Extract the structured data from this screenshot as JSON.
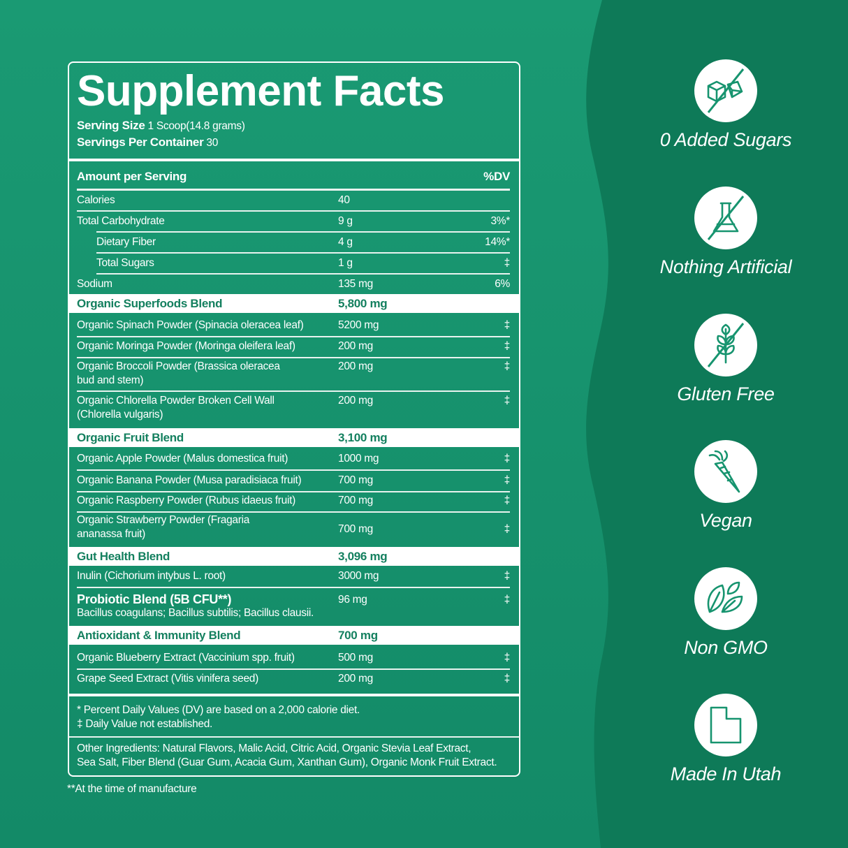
{
  "colors": {
    "panel": "#17946f",
    "dark": "#0e7a58",
    "white": "#ffffff",
    "blend_text": "#14805f"
  },
  "facts": {
    "title": "Supplement Facts",
    "serving_size_label": "Serving Size",
    "serving_size_value": "1 Scoop(14.8 grams)",
    "servings_label": "Servings Per Container",
    "servings_value": "30",
    "amount_header": "Amount per Serving",
    "dv_header": "%DV",
    "nutrients": [
      {
        "name": "Calories",
        "amount": "40",
        "dv": ""
      },
      {
        "name": "Total Carbohydrate",
        "amount": "9 g",
        "dv": "3%*"
      },
      {
        "name": "Dietary Fiber",
        "amount": "4 g",
        "dv": "14%*"
      },
      {
        "name": "Total Sugars",
        "amount": "1 g",
        "dv": "‡"
      },
      {
        "name": "Sodium",
        "amount": "135 mg",
        "dv": "6%"
      }
    ],
    "blends": [
      {
        "name": "Organic Superfoods Blend",
        "amount": "5,800 mg",
        "items": [
          {
            "name": "Organic Spinach Powder (Spinacia oleracea leaf)",
            "amount": "5200 mg",
            "dv": "‡"
          },
          {
            "name": "Organic Moringa Powder (Moringa oleifera leaf)",
            "amount": "200 mg",
            "dv": "‡"
          },
          {
            "name": "Organic Broccoli Powder (Brassica oleracea",
            "name2": "bud and stem)",
            "amount": "200 mg",
            "dv": "‡"
          },
          {
            "name": "Organic Chlorella Powder Broken Cell Wall",
            "name2": "(Chlorella vulgaris)",
            "amount": "200 mg",
            "dv": "‡"
          }
        ]
      },
      {
        "name": "Organic Fruit Blend",
        "amount": "3,100 mg",
        "items": [
          {
            "name": "Organic Apple Powder (Malus domestica fruit)",
            "amount": "1000 mg",
            "dv": "‡"
          },
          {
            "name": "Organic Banana Powder (Musa paradisiaca fruit)",
            "amount": "700 mg",
            "dv": "‡"
          },
          {
            "name": "Organic Raspberry Powder (Rubus idaeus fruit)",
            "amount": "700 mg",
            "dv": "‡"
          },
          {
            "name": "Organic Strawberry Powder (Fragaria",
            "name2": "ananassa fruit)",
            "amount": "700 mg",
            "dv": "‡"
          }
        ]
      },
      {
        "name": "Gut Health Blend",
        "amount": "3,096 mg",
        "items": [
          {
            "name": "Inulin (Cichorium intybus L. root)",
            "amount": "3000 mg",
            "dv": "‡"
          },
          {
            "name": "Probiotic Blend (5B CFU**)",
            "name2": "Bacillus coagulans; Bacillus subtilis; Bacillus clausii.",
            "amount": "96 mg",
            "dv": "‡"
          }
        ]
      },
      {
        "name": "Antioxidant & Immunity Blend",
        "amount": "700 mg",
        "items": [
          {
            "name": "Organic Blueberry Extract (Vaccinium spp. fruit)",
            "amount": "500 mg",
            "dv": "‡"
          },
          {
            "name": "Grape Seed Extract (Vitis vinifera seed)",
            "amount": "200 mg",
            "dv": "‡"
          }
        ]
      }
    ],
    "footnote1": "* Percent Daily Values (DV) are based on a 2,000 calorie diet.",
    "footnote2": "‡ Daily Value not established.",
    "other1": "Other Ingredients: Natural Flavors, Malic Acid, Citric Acid, Organic Stevia Leaf Extract,",
    "other2": "Sea Salt, Fiber Blend (Guar Gum, Acacia Gum, Xanthan Gum), Organic Monk Fruit Extract.",
    "manufacture_note": "**At the time of manufacture"
  },
  "badges": [
    {
      "label": "0 Added Sugars",
      "icon": "no-sugar-cubes-icon"
    },
    {
      "label": "Nothing Artificial",
      "icon": "no-flask-icon"
    },
    {
      "label": "Gluten Free",
      "icon": "no-wheat-icon"
    },
    {
      "label": "Vegan",
      "icon": "carrot-icon"
    },
    {
      "label": "Non GMO",
      "icon": "leaves-icon"
    },
    {
      "label": "Made In Utah",
      "icon": "utah-state-icon"
    }
  ]
}
